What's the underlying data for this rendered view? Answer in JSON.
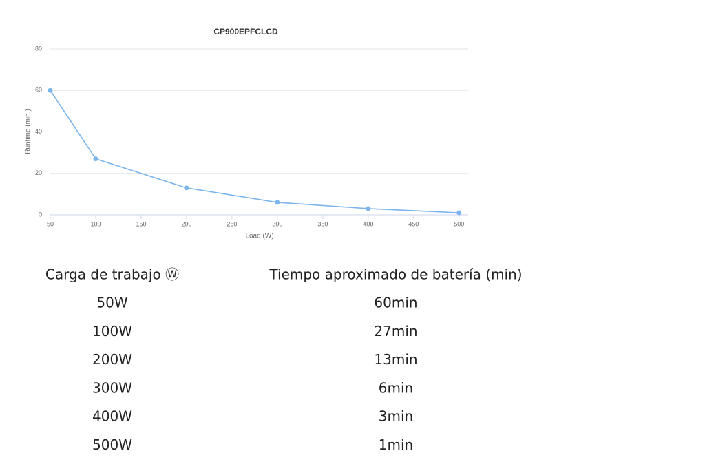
{
  "chart_data": {
    "type": "line",
    "title": "CP900EPFCLCD",
    "x_label": "Load (W)",
    "y_label": "Runtime (min.)",
    "x": [
      50,
      100,
      200,
      300,
      400,
      500
    ],
    "values": [
      60,
      27,
      13,
      6,
      3,
      1
    ],
    "color": "#7cb5ec",
    "xlim": [
      50,
      510
    ],
    "xticks": [
      50,
      100,
      150,
      200,
      250,
      300,
      350,
      400,
      450,
      500
    ],
    "ylim": [
      0,
      80
    ],
    "yticks": [
      0,
      20,
      40,
      60,
      80
    ],
    "grid": true
  },
  "table": {
    "header": [
      "Carga de trabajo Ⓦ",
      "Tiempo aproximado de batería (min)"
    ],
    "rows": [
      [
        "50W",
        "60min"
      ],
      [
        "100W",
        "27min"
      ],
      [
        "200W",
        "13min"
      ],
      [
        "300W",
        "6min"
      ],
      [
        "400W",
        "3min"
      ],
      [
        "500W",
        "1min"
      ]
    ]
  }
}
